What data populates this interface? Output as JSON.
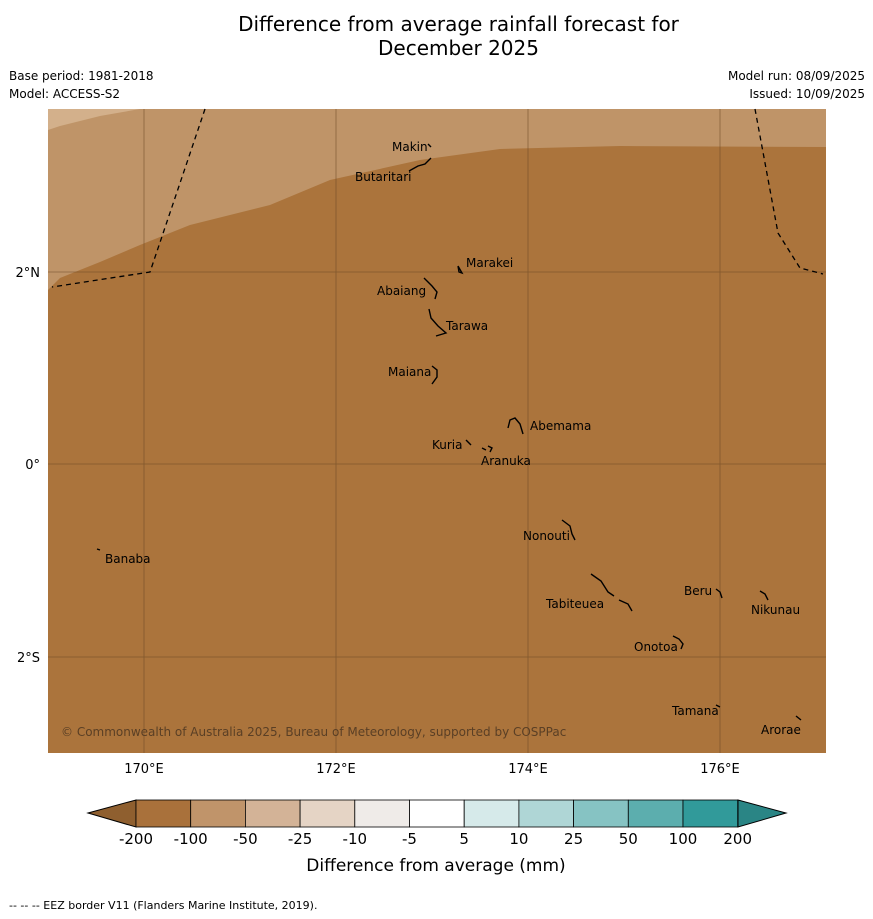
{
  "title_line1": "Difference from average rainfall forecast for",
  "title_line2": "December 2025",
  "meta_left": [
    "Base period: 1981-2018",
    "Model: ACCESS-S2"
  ],
  "meta_right": [
    "Model run: 08/09/2025",
    "Issued: 10/09/2025"
  ],
  "copyright": "© Commonwealth of Australia 2025, Bureau of Meteorology, supported by COSPPac",
  "axes": {
    "x_ticks": [
      "170°E",
      "172°E",
      "174°E",
      "176°E"
    ],
    "y_ticks": [
      "2°N",
      "0°",
      "2°S"
    ]
  },
  "places": [
    {
      "name": "Makin"
    },
    {
      "name": "Butaritari"
    },
    {
      "name": "Marakei"
    },
    {
      "name": "Abaiang"
    },
    {
      "name": "Tarawa"
    },
    {
      "name": "Maiana"
    },
    {
      "name": "Abemama"
    },
    {
      "name": "Kuria"
    },
    {
      "name": "Aranuka"
    },
    {
      "name": "Nonouti"
    },
    {
      "name": "Banaba"
    },
    {
      "name": "Beru"
    },
    {
      "name": "Tabiteuea"
    },
    {
      "name": "Nikunau"
    },
    {
      "name": "Onotoa"
    },
    {
      "name": "Tamana"
    },
    {
      "name": "Arorae"
    }
  ],
  "colorbar": {
    "label": "Difference from average (mm)",
    "ticks": [
      "-200",
      "-100",
      "-50",
      "-25",
      "-10",
      "-5",
      "5",
      "10",
      "25",
      "50",
      "100",
      "200"
    ],
    "colors": [
      "#a9713b",
      "#c0946a",
      "#d3b397",
      "#e5d4c5",
      "#efebe8",
      "#ffffff",
      "#d6eaea",
      "#afd6d6",
      "#86c3c3",
      "#5caeae",
      "#319a9a"
    ],
    "under_color": "#8f5f2f",
    "over_color": "#2a8585"
  },
  "map_colors": {
    "base": "#ab743c",
    "mid": "#bf9468",
    "light": "#d3b08b"
  },
  "footnote": "--  --  -- EEZ border V11 (Flanders Marine Institute, 2019)."
}
